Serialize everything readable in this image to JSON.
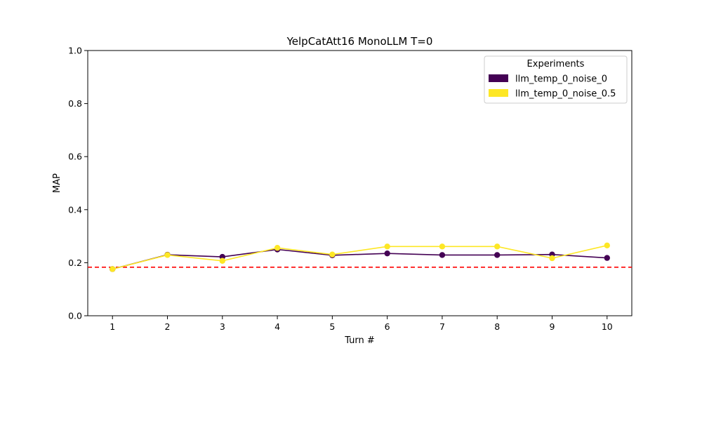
{
  "chart_data": {
    "type": "line",
    "title": "YelpCatAtt16 MonoLLM T=0",
    "xlabel": "Turn #",
    "ylabel": "MAP",
    "x": [
      1,
      2,
      3,
      4,
      5,
      6,
      7,
      8,
      9,
      10
    ],
    "xlim": [
      0.55,
      10.45
    ],
    "ylim": [
      0,
      1.0
    ],
    "yticks": [
      0.0,
      0.2,
      0.4,
      0.6,
      0.8,
      1.0
    ],
    "ytick_labels": [
      "0.0",
      "0.2",
      "0.4",
      "0.6",
      "0.8",
      "1.0"
    ],
    "xticks": [
      1,
      2,
      3,
      4,
      5,
      6,
      7,
      8,
      9,
      10
    ],
    "xtick_labels": [
      "1",
      "2",
      "3",
      "4",
      "5",
      "6",
      "7",
      "8",
      "9",
      "10"
    ],
    "grid": false,
    "series": [
      {
        "name": "llm_temp_0_noise_0",
        "color": "#440154",
        "values": [
          0.176,
          0.23,
          0.222,
          0.25,
          0.228,
          0.235,
          0.229,
          0.229,
          0.231,
          0.218
        ]
      },
      {
        "name": "llm_temp_0_noise_0.5",
        "color": "#fde725",
        "values": [
          0.176,
          0.229,
          0.207,
          0.256,
          0.231,
          0.261,
          0.261,
          0.261,
          0.217,
          0.265
        ]
      }
    ],
    "reference_line": {
      "y": 0.183,
      "color": "#ff0000",
      "style": "dashed"
    },
    "legend": {
      "title": "Experiments",
      "placement": "top-right"
    }
  }
}
